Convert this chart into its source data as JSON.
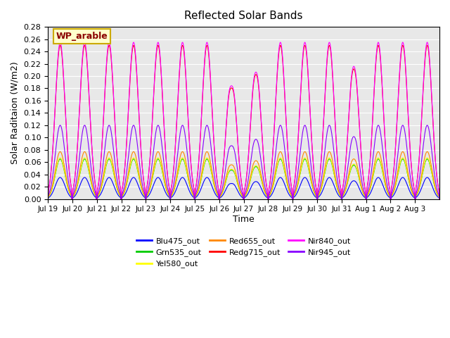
{
  "title": "Reflected Solar Bands",
  "xlabel": "Time",
  "ylabel": "Solar Raditaion (W/m2)",
  "annotation": "WP_arable",
  "ylim": [
    0.0,
    0.28
  ],
  "xtick_labels": [
    "Jul 19",
    "Jul 20",
    "Jul 21",
    "Jul 22",
    "Jul 23",
    "Jul 24",
    "Jul 25",
    "Jul 26",
    "Jul 27",
    "Jul 28",
    "Jul 29",
    "Jul 30",
    "Jul 31",
    "Aug 1",
    "Aug 2",
    "Aug 3"
  ],
  "series": [
    {
      "label": "Blu475_out",
      "color": "#0000ff"
    },
    {
      "label": "Grn535_out",
      "color": "#00cc00"
    },
    {
      "label": "Yel580_out",
      "color": "#ffff00"
    },
    {
      "label": "Red655_out",
      "color": "#ff8800"
    },
    {
      "label": "Redg715_out",
      "color": "#ff0000"
    },
    {
      "label": "Nir840_out",
      "color": "#ff00ff"
    },
    {
      "label": "Nir945_out",
      "color": "#8800ff"
    }
  ],
  "bg_color": "#e8e8e8",
  "fig_bg": "#ffffff",
  "n_days": 16,
  "points_per_day": 48,
  "peak_scales": [
    0.035,
    0.065,
    0.067,
    0.077,
    0.25,
    0.255,
    0.12
  ],
  "cloud_factors": [
    1.0,
    1.0,
    1.0,
    1.0,
    1.0,
    1.0,
    1.0,
    0.85,
    0.9,
    1.0,
    1.0,
    1.0,
    0.92,
    1.0,
    1.0,
    1.0
  ]
}
